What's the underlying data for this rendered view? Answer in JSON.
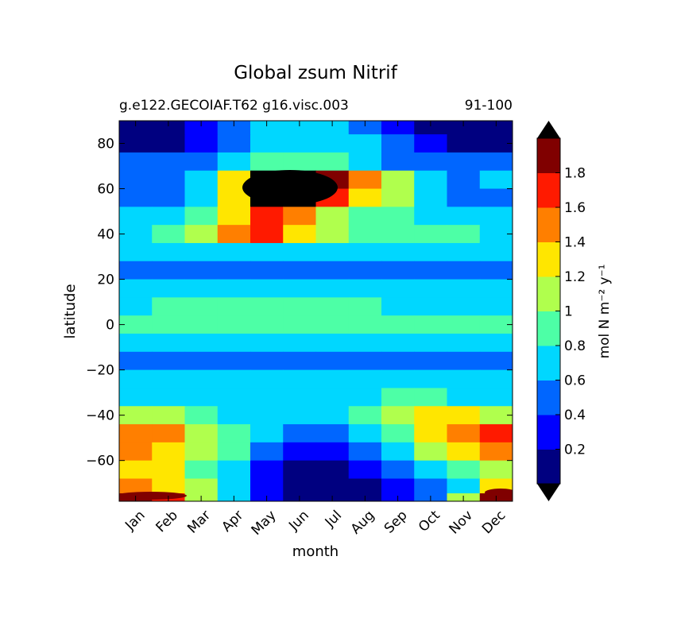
{
  "chart_data": {
    "type": "heatmap",
    "subtype": "filled-contour",
    "title": "Global zsum Nitrif",
    "subtitle_left": "g.e122.GECOIAF.T62 g16.visc.003",
    "subtitle_right": "91-100",
    "xlabel": "month",
    "ylabel": "latitude",
    "x_tick_labels": [
      "Jan",
      "Feb",
      "Mar",
      "Apr",
      "May",
      "Jun",
      "Jul",
      "Aug",
      "Sep",
      "Oct",
      "Nov",
      "Dec"
    ],
    "y_ticks": [
      80,
      60,
      40,
      20,
      0,
      -20,
      -40,
      -60
    ],
    "y_tick_labels": [
      "80",
      "60",
      "40",
      "20",
      "0",
      "−20",
      "−40",
      "−60"
    ],
    "ylim": [
      -78,
      90
    ],
    "colorbar": {
      "label": "mol N m⁻² y⁻¹",
      "levels": [
        0,
        0.2,
        0.4,
        0.6,
        0.8,
        1.0,
        1.2,
        1.4,
        1.6,
        1.8,
        2.0
      ],
      "tick_labels": [
        "0.2",
        "0.4",
        "0.6",
        "0.8",
        "1",
        "1.2",
        "1.4",
        "1.6",
        "1.8"
      ],
      "colors": [
        "#000080",
        "#0000ff",
        "#0066ff",
        "#00d7ff",
        "#4dffa6",
        "#b0ff4d",
        "#ffe600",
        "#ff7f00",
        "#ff1a00",
        "#800000"
      ],
      "extend_low_color": "#000000",
      "extend_high_color": "#000000",
      "extend": "both"
    },
    "values_by_month_and_latitude": {
      "latitudes": [
        88,
        80,
        72,
        64,
        56,
        48,
        40,
        32,
        24,
        16,
        8,
        0,
        -8,
        -16,
        -24,
        -32,
        -40,
        -48,
        -56,
        -64,
        -72,
        -77
      ],
      "rows": [
        [
          0.1,
          0.1,
          0.3,
          0.5,
          0.7,
          0.7,
          0.7,
          0.5,
          0.3,
          0.1,
          0.1,
          0.1
        ],
        [
          0.1,
          0.1,
          0.3,
          0.5,
          0.7,
          0.7,
          0.7,
          0.7,
          0.5,
          0.3,
          0.1,
          0.1
        ],
        [
          0.5,
          0.5,
          0.5,
          0.7,
          0.9,
          0.9,
          0.9,
          0.7,
          0.5,
          0.5,
          0.5,
          0.5
        ],
        [
          0.5,
          0.5,
          0.7,
          1.3,
          2.1,
          2.1,
          1.9,
          1.5,
          1.1,
          0.7,
          0.5,
          0.7
        ],
        [
          0.5,
          0.5,
          0.7,
          1.3,
          2.1,
          2.1,
          1.7,
          1.3,
          1.1,
          0.7,
          0.5,
          0.5
        ],
        [
          0.7,
          0.7,
          0.9,
          1.3,
          1.7,
          1.5,
          1.1,
          0.9,
          0.9,
          0.7,
          0.7,
          0.7
        ],
        [
          0.7,
          0.9,
          1.1,
          1.5,
          1.7,
          1.3,
          1.1,
          0.9,
          0.9,
          0.9,
          0.9,
          0.7
        ],
        [
          0.7,
          0.7,
          0.7,
          0.7,
          0.7,
          0.7,
          0.7,
          0.7,
          0.7,
          0.7,
          0.7,
          0.7
        ],
        [
          0.5,
          0.5,
          0.5,
          0.5,
          0.5,
          0.5,
          0.5,
          0.5,
          0.5,
          0.5,
          0.5,
          0.5
        ],
        [
          0.7,
          0.7,
          0.7,
          0.7,
          0.7,
          0.7,
          0.7,
          0.7,
          0.7,
          0.7,
          0.7,
          0.7
        ],
        [
          0.7,
          0.9,
          0.9,
          0.9,
          0.9,
          0.9,
          0.9,
          0.9,
          0.7,
          0.7,
          0.7,
          0.7
        ],
        [
          0.9,
          0.9,
          0.9,
          0.9,
          0.9,
          0.9,
          0.9,
          0.9,
          0.9,
          0.9,
          0.9,
          0.9
        ],
        [
          0.7,
          0.7,
          0.7,
          0.7,
          0.7,
          0.7,
          0.7,
          0.7,
          0.7,
          0.7,
          0.7,
          0.7
        ],
        [
          0.5,
          0.5,
          0.5,
          0.5,
          0.5,
          0.5,
          0.5,
          0.5,
          0.5,
          0.5,
          0.5,
          0.5
        ],
        [
          0.7,
          0.7,
          0.7,
          0.7,
          0.7,
          0.7,
          0.7,
          0.7,
          0.7,
          0.7,
          0.7,
          0.7
        ],
        [
          0.7,
          0.7,
          0.7,
          0.7,
          0.7,
          0.7,
          0.7,
          0.7,
          0.9,
          0.9,
          0.7,
          0.7
        ],
        [
          1.1,
          1.1,
          0.9,
          0.7,
          0.7,
          0.7,
          0.7,
          0.9,
          1.1,
          1.3,
          1.3,
          1.1
        ],
        [
          1.5,
          1.5,
          1.1,
          0.9,
          0.7,
          0.5,
          0.5,
          0.7,
          0.9,
          1.3,
          1.5,
          1.7
        ],
        [
          1.5,
          1.3,
          1.1,
          0.9,
          0.5,
          0.3,
          0.3,
          0.5,
          0.7,
          1.1,
          1.3,
          1.5
        ],
        [
          1.3,
          1.3,
          0.9,
          0.7,
          0.3,
          0.1,
          0.1,
          0.3,
          0.5,
          0.7,
          0.9,
          1.1
        ],
        [
          1.5,
          1.3,
          1.1,
          0.7,
          0.3,
          0.1,
          0.1,
          0.1,
          0.3,
          0.5,
          0.7,
          1.3
        ],
        [
          1.9,
          1.7,
          1.1,
          0.7,
          0.3,
          0.1,
          0.1,
          0.1,
          0.3,
          0.5,
          1.1,
          1.9
        ]
      ]
    }
  }
}
